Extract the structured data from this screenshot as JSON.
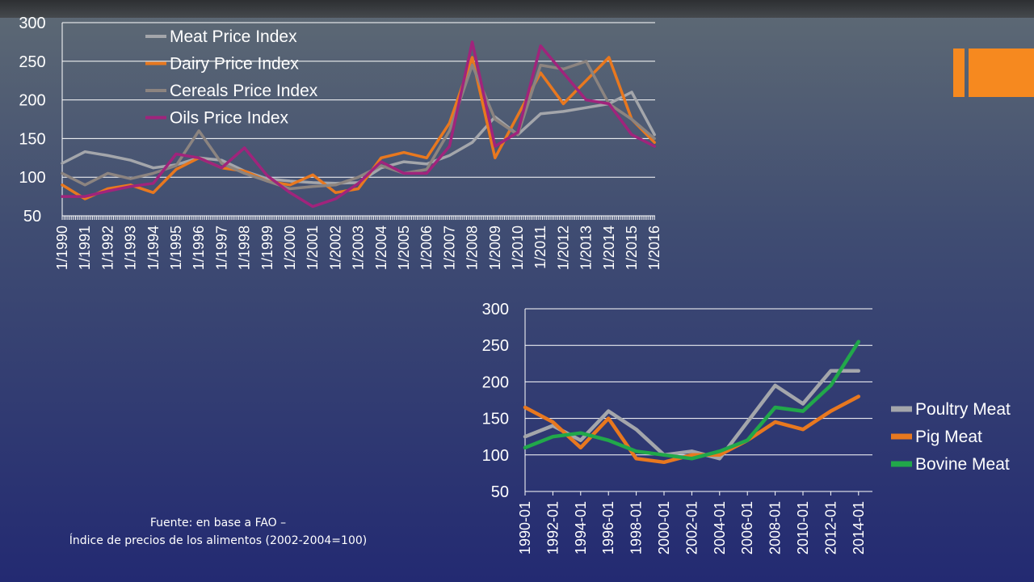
{
  "source_note": {
    "line1": "Fuente: en base a FAO –",
    "line2": "Índice de precios de los alimentos (2002-2004=100)"
  },
  "chart_data": [
    {
      "type": "line",
      "x_label_format": "M/YYYY",
      "x": [
        "1/1990",
        "1/1991",
        "1/1992",
        "1/1993",
        "1/1994",
        "1/1995",
        "1/1996",
        "1/1997",
        "1/1998",
        "1/1999",
        "1/2000",
        "1/2001",
        "1/2002",
        "1/2003",
        "1/2004",
        "1/2005",
        "1/2006",
        "1/2007",
        "1/2008",
        "1/2009",
        "1/2010",
        "1/2011",
        "1/2012",
        "1/2013",
        "1/2014",
        "1/2015",
        "1/2016"
      ],
      "ylim": [
        50,
        300
      ],
      "yticks": [
        50,
        100,
        150,
        200,
        250,
        300
      ],
      "grid": true,
      "legend_position": "top-left",
      "series": [
        {
          "name": "Meat Price Index",
          "color": "#a4a6ab",
          "values": [
            118,
            133,
            128,
            122,
            112,
            116,
            125,
            122,
            108,
            98,
            95,
            93,
            92,
            93,
            112,
            120,
            117,
            128,
            145,
            178,
            155,
            182,
            185,
            190,
            195,
            210,
            155
          ]
        },
        {
          "name": "Dairy Price Index",
          "color": "#e8781f",
          "values": [
            90,
            72,
            85,
            90,
            80,
            110,
            125,
            112,
            108,
            95,
            90,
            103,
            80,
            85,
            125,
            132,
            125,
            170,
            255,
            125,
            180,
            235,
            195,
            225,
            255,
            175,
            145
          ]
        },
        {
          "name": "Cereals Price Index",
          "color": "#8c8480",
          "values": [
            105,
            90,
            105,
            98,
            105,
            115,
            160,
            118,
            105,
            95,
            85,
            88,
            90,
            100,
            115,
            105,
            110,
            160,
            245,
            175,
            155,
            245,
            240,
            250,
            195,
            175,
            150
          ]
        },
        {
          "name": "Oils Price Index",
          "color": "#a0247c",
          "values": [
            75,
            75,
            82,
            88,
            92,
            130,
            125,
            112,
            138,
            102,
            80,
            62,
            72,
            92,
            120,
            105,
            105,
            140,
            275,
            140,
            158,
            270,
            235,
            200,
            195,
            155,
            140
          ]
        }
      ]
    },
    {
      "type": "line",
      "x_label_format": "YYYY-MM",
      "x": [
        "1990-01",
        "1992-01",
        "1994-01",
        "1996-01",
        "1998-01",
        "2000-01",
        "2002-01",
        "2004-01",
        "2006-01",
        "2008-01",
        "2010-01",
        "2012-01",
        "2014-01"
      ],
      "ylim": [
        50,
        300
      ],
      "yticks": [
        50,
        100,
        150,
        200,
        250,
        300
      ],
      "grid": true,
      "legend_position": "right",
      "series": [
        {
          "name": "Poultry Meat",
          "color": "#a4a6ab",
          "values": [
            125,
            140,
            120,
            160,
            135,
            100,
            105,
            95,
            145,
            195,
            170,
            215,
            215
          ]
        },
        {
          "name": "Pig Meat",
          "color": "#e8781f",
          "values": [
            165,
            145,
            110,
            150,
            95,
            90,
            100,
            100,
            120,
            145,
            135,
            160,
            180
          ]
        },
        {
          "name": "Bovine Meat",
          "color": "#21a84a",
          "values": [
            110,
            125,
            130,
            120,
            105,
            100,
            95,
            105,
            120,
            165,
            160,
            195,
            255
          ]
        }
      ]
    }
  ]
}
